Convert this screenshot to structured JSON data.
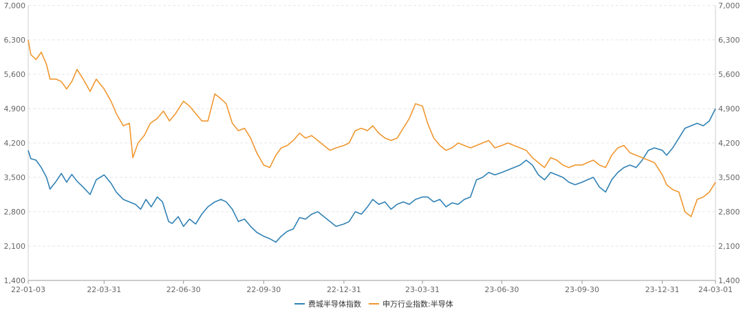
{
  "chart_data": {
    "type": "line",
    "title": "",
    "xlabel": "",
    "ylabel": "",
    "ylim": [
      1400,
      7000
    ],
    "y2lim": [
      1400,
      7000
    ],
    "y_ticks": [
      "1,400",
      "2,100",
      "2,800",
      "3,500",
      "4,200",
      "4,900",
      "5,600",
      "6,300",
      "7,000"
    ],
    "y2_ticks": [
      "1,400",
      "2,100",
      "2,800",
      "3,500",
      "4,200",
      "4,900",
      "5,600",
      "6,300",
      "7,000"
    ],
    "x_ticks": [
      "22-01-03",
      "22-03-31",
      "22-06-30",
      "22-09-30",
      "22-12-31",
      "23-03-31",
      "23-06-30",
      "23-09-30",
      "23-12-31",
      "24-03-01"
    ],
    "x_dates": [
      "2022-01-03",
      "2022-03-31",
      "2022-06-30",
      "2022-09-30",
      "2022-12-31",
      "2023-03-31",
      "2023-06-30",
      "2023-09-30",
      "2023-12-31",
      "2024-03-01"
    ],
    "grid": "horizontal dashed",
    "legend_position": "bottom-center",
    "series": [
      {
        "name": "费城半导体指数",
        "color": "#2e80b4",
        "axis": "left",
        "points": [
          [
            "2022-01-03",
            4050
          ],
          [
            "2022-01-06",
            3880
          ],
          [
            "2022-01-12",
            3850
          ],
          [
            "2022-01-18",
            3700
          ],
          [
            "2022-01-24",
            3500
          ],
          [
            "2022-01-28",
            3260
          ],
          [
            "2022-02-04",
            3420
          ],
          [
            "2022-02-10",
            3580
          ],
          [
            "2022-02-16",
            3400
          ],
          [
            "2022-02-22",
            3560
          ],
          [
            "2022-02-28",
            3420
          ],
          [
            "2022-03-07",
            3300
          ],
          [
            "2022-03-15",
            3150
          ],
          [
            "2022-03-22",
            3450
          ],
          [
            "2022-03-31",
            3550
          ],
          [
            "2022-04-08",
            3380
          ],
          [
            "2022-04-14",
            3200
          ],
          [
            "2022-04-22",
            3050
          ],
          [
            "2022-04-29",
            3000
          ],
          [
            "2022-05-06",
            2950
          ],
          [
            "2022-05-12",
            2850
          ],
          [
            "2022-05-18",
            3050
          ],
          [
            "2022-05-24",
            2900
          ],
          [
            "2022-05-31",
            3100
          ],
          [
            "2022-06-06",
            3000
          ],
          [
            "2022-06-13",
            2600
          ],
          [
            "2022-06-17",
            2560
          ],
          [
            "2022-06-24",
            2700
          ],
          [
            "2022-06-30",
            2500
          ],
          [
            "2022-07-07",
            2650
          ],
          [
            "2022-07-14",
            2550
          ],
          [
            "2022-07-21",
            2750
          ],
          [
            "2022-07-28",
            2900
          ],
          [
            "2022-08-05",
            3000
          ],
          [
            "2022-08-12",
            3050
          ],
          [
            "2022-08-18",
            3000
          ],
          [
            "2022-08-25",
            2850
          ],
          [
            "2022-09-01",
            2600
          ],
          [
            "2022-09-08",
            2650
          ],
          [
            "2022-09-15",
            2500
          ],
          [
            "2022-09-22",
            2380
          ],
          [
            "2022-09-30",
            2300
          ],
          [
            "2022-10-07",
            2250
          ],
          [
            "2022-10-14",
            2180
          ],
          [
            "2022-10-20",
            2300
          ],
          [
            "2022-10-27",
            2400
          ],
          [
            "2022-11-03",
            2450
          ],
          [
            "2022-11-10",
            2680
          ],
          [
            "2022-11-17",
            2650
          ],
          [
            "2022-11-24",
            2750
          ],
          [
            "2022-12-01",
            2800
          ],
          [
            "2022-12-08",
            2700
          ],
          [
            "2022-12-15",
            2600
          ],
          [
            "2022-12-22",
            2500
          ],
          [
            "2022-12-31",
            2550
          ],
          [
            "2023-01-06",
            2600
          ],
          [
            "2023-01-13",
            2800
          ],
          [
            "2023-01-20",
            2750
          ],
          [
            "2023-01-27",
            2900
          ],
          [
            "2023-02-02",
            3050
          ],
          [
            "2023-02-09",
            2950
          ],
          [
            "2023-02-16",
            3000
          ],
          [
            "2023-02-23",
            2850
          ],
          [
            "2023-03-02",
            2950
          ],
          [
            "2023-03-09",
            3000
          ],
          [
            "2023-03-16",
            2950
          ],
          [
            "2023-03-23",
            3050
          ],
          [
            "2023-03-31",
            3100
          ],
          [
            "2023-04-06",
            3100
          ],
          [
            "2023-04-13",
            3000
          ],
          [
            "2023-04-20",
            3050
          ],
          [
            "2023-04-27",
            2900
          ],
          [
            "2023-05-04",
            2980
          ],
          [
            "2023-05-11",
            2950
          ],
          [
            "2023-05-18",
            3050
          ],
          [
            "2023-05-25",
            3100
          ],
          [
            "2023-06-01",
            3450
          ],
          [
            "2023-06-08",
            3500
          ],
          [
            "2023-06-15",
            3600
          ],
          [
            "2023-06-22",
            3550
          ],
          [
            "2023-06-30",
            3600
          ],
          [
            "2023-07-07",
            3650
          ],
          [
            "2023-07-14",
            3700
          ],
          [
            "2023-07-21",
            3750
          ],
          [
            "2023-07-28",
            3850
          ],
          [
            "2023-08-04",
            3750
          ],
          [
            "2023-08-11",
            3550
          ],
          [
            "2023-08-18",
            3450
          ],
          [
            "2023-08-25",
            3600
          ],
          [
            "2023-09-01",
            3550
          ],
          [
            "2023-09-08",
            3500
          ],
          [
            "2023-09-15",
            3400
          ],
          [
            "2023-09-22",
            3350
          ],
          [
            "2023-09-30",
            3400
          ],
          [
            "2023-10-06",
            3450
          ],
          [
            "2023-10-13",
            3500
          ],
          [
            "2023-10-20",
            3300
          ],
          [
            "2023-10-27",
            3200
          ],
          [
            "2023-11-03",
            3450
          ],
          [
            "2023-11-10",
            3600
          ],
          [
            "2023-11-17",
            3700
          ],
          [
            "2023-11-24",
            3750
          ],
          [
            "2023-12-01",
            3700
          ],
          [
            "2023-12-08",
            3850
          ],
          [
            "2023-12-15",
            4050
          ],
          [
            "2023-12-22",
            4100
          ],
          [
            "2023-12-31",
            4050
          ],
          [
            "2024-01-05",
            3950
          ],
          [
            "2024-01-12",
            4100
          ],
          [
            "2024-01-19",
            4300
          ],
          [
            "2024-01-26",
            4500
          ],
          [
            "2024-02-02",
            4550
          ],
          [
            "2024-02-09",
            4600
          ],
          [
            "2024-02-16",
            4550
          ],
          [
            "2024-02-23",
            4650
          ],
          [
            "2024-03-01",
            4900
          ]
        ]
      },
      {
        "name": "申万行业指数:半导体",
        "color": "#f0962d",
        "axis": "right",
        "points": [
          [
            "2022-01-03",
            6300
          ],
          [
            "2022-01-06",
            6000
          ],
          [
            "2022-01-12",
            5900
          ],
          [
            "2022-01-18",
            6050
          ],
          [
            "2022-01-24",
            5800
          ],
          [
            "2022-01-28",
            5500
          ],
          [
            "2022-02-04",
            5500
          ],
          [
            "2022-02-10",
            5450
          ],
          [
            "2022-02-16",
            5300
          ],
          [
            "2022-02-22",
            5450
          ],
          [
            "2022-02-28",
            5700
          ],
          [
            "2022-03-07",
            5500
          ],
          [
            "2022-03-15",
            5250
          ],
          [
            "2022-03-22",
            5500
          ],
          [
            "2022-03-31",
            5300
          ],
          [
            "2022-04-08",
            5050
          ],
          [
            "2022-04-14",
            4800
          ],
          [
            "2022-04-22",
            4550
          ],
          [
            "2022-04-29",
            4600
          ],
          [
            "2022-05-03",
            3900
          ],
          [
            "2022-05-09",
            4200
          ],
          [
            "2022-05-16",
            4350
          ],
          [
            "2022-05-23",
            4600
          ],
          [
            "2022-05-31",
            4700
          ],
          [
            "2022-06-07",
            4850
          ],
          [
            "2022-06-14",
            4650
          ],
          [
            "2022-06-21",
            4800
          ],
          [
            "2022-06-30",
            5050
          ],
          [
            "2022-07-07",
            4950
          ],
          [
            "2022-07-14",
            4800
          ],
          [
            "2022-07-21",
            4650
          ],
          [
            "2022-07-28",
            4650
          ],
          [
            "2022-08-05",
            5200
          ],
          [
            "2022-08-12",
            5100
          ],
          [
            "2022-08-18",
            5000
          ],
          [
            "2022-08-25",
            4600
          ],
          [
            "2022-09-01",
            4450
          ],
          [
            "2022-09-08",
            4500
          ],
          [
            "2022-09-15",
            4300
          ],
          [
            "2022-09-22",
            4000
          ],
          [
            "2022-09-30",
            3750
          ],
          [
            "2022-10-07",
            3700
          ],
          [
            "2022-10-14",
            3950
          ],
          [
            "2022-10-20",
            4100
          ],
          [
            "2022-10-27",
            4150
          ],
          [
            "2022-11-03",
            4250
          ],
          [
            "2022-11-10",
            4400
          ],
          [
            "2022-11-17",
            4300
          ],
          [
            "2022-11-24",
            4350
          ],
          [
            "2022-12-01",
            4250
          ],
          [
            "2022-12-08",
            4150
          ],
          [
            "2022-12-15",
            4050
          ],
          [
            "2022-12-22",
            4100
          ],
          [
            "2022-12-31",
            4150
          ],
          [
            "2023-01-06",
            4200
          ],
          [
            "2023-01-13",
            4450
          ],
          [
            "2023-01-20",
            4500
          ],
          [
            "2023-01-27",
            4450
          ],
          [
            "2023-02-02",
            4550
          ],
          [
            "2023-02-09",
            4400
          ],
          [
            "2023-02-16",
            4300
          ],
          [
            "2023-02-23",
            4250
          ],
          [
            "2023-03-02",
            4300
          ],
          [
            "2023-03-09",
            4500
          ],
          [
            "2023-03-16",
            4700
          ],
          [
            "2023-03-23",
            5000
          ],
          [
            "2023-03-31",
            4950
          ],
          [
            "2023-04-06",
            4600
          ],
          [
            "2023-04-13",
            4300
          ],
          [
            "2023-04-20",
            4150
          ],
          [
            "2023-04-27",
            4050
          ],
          [
            "2023-05-04",
            4100
          ],
          [
            "2023-05-11",
            4200
          ],
          [
            "2023-05-18",
            4150
          ],
          [
            "2023-05-25",
            4100
          ],
          [
            "2023-06-01",
            4150
          ],
          [
            "2023-06-08",
            4200
          ],
          [
            "2023-06-15",
            4250
          ],
          [
            "2023-06-22",
            4100
          ],
          [
            "2023-06-30",
            4150
          ],
          [
            "2023-07-07",
            4200
          ],
          [
            "2023-07-14",
            4150
          ],
          [
            "2023-07-21",
            4100
          ],
          [
            "2023-07-28",
            4050
          ],
          [
            "2023-08-04",
            3900
          ],
          [
            "2023-08-11",
            3800
          ],
          [
            "2023-08-18",
            3700
          ],
          [
            "2023-08-25",
            3900
          ],
          [
            "2023-09-01",
            3850
          ],
          [
            "2023-09-08",
            3750
          ],
          [
            "2023-09-15",
            3700
          ],
          [
            "2023-09-22",
            3750
          ],
          [
            "2023-09-30",
            3750
          ],
          [
            "2023-10-06",
            3800
          ],
          [
            "2023-10-13",
            3850
          ],
          [
            "2023-10-20",
            3750
          ],
          [
            "2023-10-27",
            3700
          ],
          [
            "2023-11-03",
            3950
          ],
          [
            "2023-11-10",
            4100
          ],
          [
            "2023-11-17",
            4150
          ],
          [
            "2023-11-24",
            4000
          ],
          [
            "2023-12-01",
            3950
          ],
          [
            "2023-12-08",
            3900
          ],
          [
            "2023-12-15",
            3850
          ],
          [
            "2023-12-22",
            3800
          ],
          [
            "2023-12-31",
            3550
          ],
          [
            "2024-01-05",
            3350
          ],
          [
            "2024-01-12",
            3250
          ],
          [
            "2024-01-19",
            3200
          ],
          [
            "2024-01-26",
            2800
          ],
          [
            "2024-02-02",
            2700
          ],
          [
            "2024-02-09",
            3050
          ],
          [
            "2024-02-16",
            3100
          ],
          [
            "2024-02-23",
            3200
          ],
          [
            "2024-03-01",
            3400
          ]
        ]
      }
    ]
  }
}
